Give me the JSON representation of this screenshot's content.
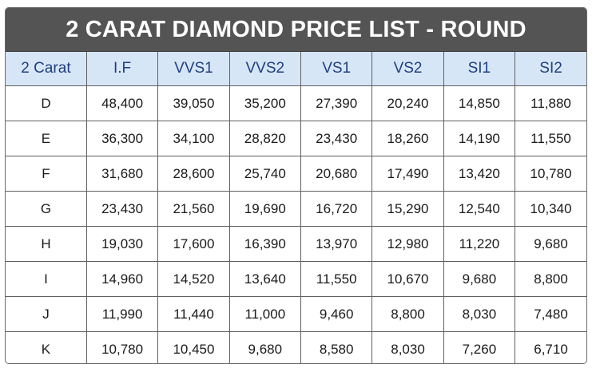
{
  "title": "2 CARAT DIAMOND PRICE LIST - ROUND",
  "table": {
    "headers": [
      "2 Carat",
      "I.F",
      "VVS1",
      "VVS2",
      "VS1",
      "VS2",
      "SI1",
      "SI2"
    ],
    "rows": [
      [
        "D",
        "48,400",
        "39,050",
        "35,200",
        "27,390",
        "20,240",
        "14,850",
        "11,880"
      ],
      [
        "E",
        "36,300",
        "34,100",
        "28,820",
        "23,430",
        "18,260",
        "14,190",
        "11,550"
      ],
      [
        "F",
        "31,680",
        "28,600",
        "25,740",
        "20,680",
        "17,490",
        "13,420",
        "10,780"
      ],
      [
        "G",
        "23,430",
        "21,560",
        "19,690",
        "16,720",
        "15,290",
        "12,540",
        "10,340"
      ],
      [
        "H",
        "19,030",
        "17,600",
        "16,390",
        "13,970",
        "12,980",
        "11,220",
        "9,680"
      ],
      [
        "I",
        "14,960",
        "14,520",
        "13,640",
        "11,550",
        "10,670",
        "9,680",
        "8,800"
      ],
      [
        "J",
        "11,990",
        "11,440",
        "11,000",
        "9,460",
        "8,800",
        "8,030",
        "7,480"
      ],
      [
        "K",
        "10,780",
        "10,450",
        "9,680",
        "8,580",
        "8,030",
        "7,260",
        "6,710"
      ]
    ]
  },
  "colors": {
    "title_bg": "#545454",
    "title_text": "#ffffff",
    "header_bg": "#d7e6f7",
    "header_text": "#1f3f7f",
    "border": "#5f5f5f"
  }
}
